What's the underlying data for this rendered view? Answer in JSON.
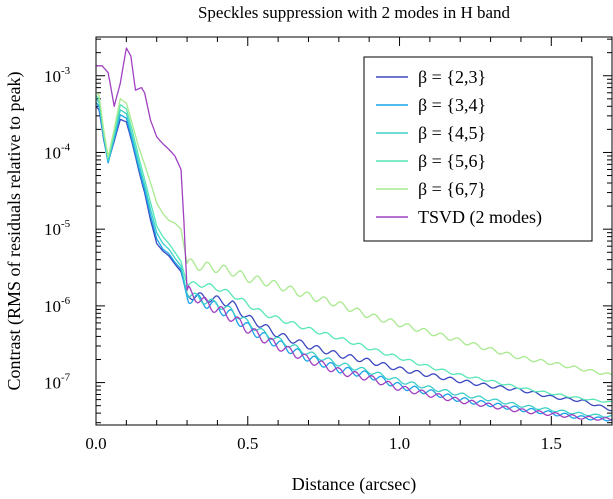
{
  "chart_data": {
    "type": "line",
    "title": "Speckles suppression with 2 modes in H band",
    "xlabel": "Distance (arcsec)",
    "ylabel": "Contrast (RMS of residuals relative to peak)",
    "x_scale": "linear",
    "y_scale": "log",
    "xlim": [
      0,
      1.7
    ],
    "ylim": [
      2.8e-08,
      0.0032
    ],
    "x_ticks": [
      {
        "value": 0.0,
        "label": "0.0"
      },
      {
        "value": 0.5,
        "label": "0.5"
      },
      {
        "value": 1.0,
        "label": "1.0"
      },
      {
        "value": 1.5,
        "label": "1.5"
      }
    ],
    "y_ticks": [
      {
        "value": 0.001,
        "base": "10",
        "exp": "-3"
      },
      {
        "value": 0.0001,
        "base": "10",
        "exp": "-4"
      },
      {
        "value": 1e-05,
        "base": "10",
        "exp": "-5"
      },
      {
        "value": 1e-06,
        "base": "10",
        "exp": "-6"
      },
      {
        "value": 1e-07,
        "base": "10",
        "exp": "-7"
      }
    ],
    "legend_position": "top-right",
    "series": [
      {
        "name": "β = {2,3}",
        "color": "#3b48c0",
        "points": [
          [
            0,
            0.0004
          ],
          [
            0.01,
            0.00036
          ],
          [
            0.025,
            0.00015
          ],
          [
            0.04,
            7.5e-05
          ],
          [
            0.06,
            0.00014
          ],
          [
            0.08,
            0.00027
          ],
          [
            0.1,
            0.00025
          ],
          [
            0.12,
            0.00013
          ],
          [
            0.14,
            6e-05
          ],
          [
            0.16,
            3e-05
          ],
          [
            0.18,
            1.3e-05
          ],
          [
            0.2,
            6.5e-06
          ],
          [
            0.22,
            5.2e-06
          ],
          [
            0.24,
            4.5e-06
          ],
          [
            0.26,
            3.5e-06
          ],
          [
            0.28,
            2.8e-06
          ],
          [
            0.3,
            1.4e-06
          ],
          [
            0.35,
            1.3e-06
          ],
          [
            0.4,
            1.2e-06
          ],
          [
            0.45,
            1.05e-06
          ],
          [
            0.5,
            7e-07
          ],
          [
            0.55,
            5.5e-07
          ],
          [
            0.6,
            4.2e-07
          ],
          [
            0.7,
            3e-07
          ],
          [
            0.8,
            2.3e-07
          ],
          [
            0.9,
            1.9e-07
          ],
          [
            1.0,
            1.5e-07
          ],
          [
            1.1,
            1.25e-07
          ],
          [
            1.2,
            1.05e-07
          ],
          [
            1.3,
            9e-08
          ],
          [
            1.4,
            8e-08
          ],
          [
            1.5,
            6.5e-08
          ],
          [
            1.6,
            5.8e-08
          ],
          [
            1.7,
            4.4e-08
          ]
        ]
      },
      {
        "name": "β = {3,4}",
        "color": "#1aa3e8",
        "points": [
          [
            0,
            0.00045
          ],
          [
            0.01,
            0.0004
          ],
          [
            0.025,
            0.00016
          ],
          [
            0.04,
            7.3e-05
          ],
          [
            0.06,
            0.00015
          ],
          [
            0.08,
            0.00031
          ],
          [
            0.1,
            0.00028
          ],
          [
            0.12,
            0.00014
          ],
          [
            0.14,
            6.5e-05
          ],
          [
            0.16,
            3.3e-05
          ],
          [
            0.18,
            1.5e-05
          ],
          [
            0.2,
            7.5e-06
          ],
          [
            0.22,
            5.5e-06
          ],
          [
            0.24,
            4.8e-06
          ],
          [
            0.26,
            3.7e-06
          ],
          [
            0.28,
            3e-06
          ],
          [
            0.3,
            1.3e-06
          ],
          [
            0.35,
            1.15e-06
          ],
          [
            0.4,
            9.5e-07
          ],
          [
            0.45,
            7.5e-07
          ],
          [
            0.5,
            5.2e-07
          ],
          [
            0.55,
            4e-07
          ],
          [
            0.6,
            3.2e-07
          ],
          [
            0.7,
            2.1e-07
          ],
          [
            0.8,
            1.5e-07
          ],
          [
            0.9,
            1.25e-07
          ],
          [
            1.0,
            9e-08
          ],
          [
            1.1,
            7.5e-08
          ],
          [
            1.2,
            6e-08
          ],
          [
            1.3,
            5.2e-08
          ],
          [
            1.4,
            4.5e-08
          ],
          [
            1.5,
            4e-08
          ],
          [
            1.6,
            3.5e-08
          ],
          [
            1.7,
            3.3e-08
          ]
        ]
      },
      {
        "name": "β = {4,5}",
        "color": "#3ccfc8",
        "points": [
          [
            0,
            0.0005
          ],
          [
            0.01,
            0.00045
          ],
          [
            0.025,
            0.00017
          ],
          [
            0.04,
            7.8e-05
          ],
          [
            0.06,
            0.00016
          ],
          [
            0.08,
            0.00036
          ],
          [
            0.1,
            0.00032
          ],
          [
            0.12,
            0.00016
          ],
          [
            0.14,
            7.5e-05
          ],
          [
            0.16,
            3.8e-05
          ],
          [
            0.18,
            1.8e-05
          ],
          [
            0.2,
            9e-06
          ],
          [
            0.22,
            6.5e-06
          ],
          [
            0.24,
            5.5e-06
          ],
          [
            0.26,
            4.2e-06
          ],
          [
            0.28,
            3.3e-06
          ],
          [
            0.3,
            1.45e-06
          ],
          [
            0.35,
            1.2e-06
          ],
          [
            0.4,
            1.05e-06
          ],
          [
            0.45,
            8.5e-07
          ],
          [
            0.5,
            6e-07
          ],
          [
            0.55,
            4.5e-07
          ],
          [
            0.6,
            3.6e-07
          ],
          [
            0.7,
            2.4e-07
          ],
          [
            0.8,
            1.75e-07
          ],
          [
            0.9,
            1.4e-07
          ],
          [
            1.0,
            1.05e-07
          ],
          [
            1.1,
            8.5e-08
          ],
          [
            1.2,
            7e-08
          ],
          [
            1.3,
            6e-08
          ],
          [
            1.4,
            5e-08
          ],
          [
            1.5,
            4.4e-08
          ],
          [
            1.6,
            3.9e-08
          ],
          [
            1.7,
            3.6e-08
          ]
        ]
      },
      {
        "name": "β = {5,6}",
        "color": "#58e6b8",
        "points": [
          [
            0,
            0.00055
          ],
          [
            0.01,
            0.0005
          ],
          [
            0.025,
            0.00018
          ],
          [
            0.04,
            8.2e-05
          ],
          [
            0.06,
            0.00018
          ],
          [
            0.08,
            0.00042
          ],
          [
            0.1,
            0.00037
          ],
          [
            0.12,
            0.00019
          ],
          [
            0.14,
            9e-05
          ],
          [
            0.16,
            4.5e-05
          ],
          [
            0.18,
            2.2e-05
          ],
          [
            0.2,
            1.1e-05
          ],
          [
            0.22,
            8e-06
          ],
          [
            0.24,
            6.5e-06
          ],
          [
            0.26,
            5e-06
          ],
          [
            0.28,
            3.8e-06
          ],
          [
            0.3,
            1.9e-06
          ],
          [
            0.35,
            1.9e-06
          ],
          [
            0.4,
            1.7e-06
          ],
          [
            0.45,
            1.4e-06
          ],
          [
            0.5,
            1.05e-06
          ],
          [
            0.55,
            8e-07
          ],
          [
            0.6,
            6.8e-07
          ],
          [
            0.7,
            5e-07
          ],
          [
            0.8,
            3.8e-07
          ],
          [
            0.9,
            2.8e-07
          ],
          [
            1.0,
            2.1e-07
          ],
          [
            1.1,
            1.6e-07
          ],
          [
            1.2,
            1.25e-07
          ],
          [
            1.3,
            1.05e-07
          ],
          [
            1.4,
            8.5e-08
          ],
          [
            1.5,
            7.2e-08
          ],
          [
            1.6,
            6.2e-08
          ],
          [
            1.7,
            5.5e-08
          ]
        ]
      },
      {
        "name": "β = {6,7}",
        "color": "#a8ea8e",
        "points": [
          [
            0,
            0.0006
          ],
          [
            0.01,
            0.00056
          ],
          [
            0.025,
            0.0002
          ],
          [
            0.04,
            8.8e-05
          ],
          [
            0.06,
            0.0002
          ],
          [
            0.08,
            0.0005
          ],
          [
            0.1,
            0.00044
          ],
          [
            0.12,
            0.00023
          ],
          [
            0.14,
            0.00012
          ],
          [
            0.16,
            7e-05
          ],
          [
            0.18,
            4e-05
          ],
          [
            0.2,
            2.2e-05
          ],
          [
            0.22,
            1.6e-05
          ],
          [
            0.24,
            1.3e-05
          ],
          [
            0.26,
            1.2e-05
          ],
          [
            0.28,
            1e-05
          ],
          [
            0.3,
            3.6e-06
          ],
          [
            0.35,
            3.3e-06
          ],
          [
            0.4,
            3.1e-06
          ],
          [
            0.45,
            2.8e-06
          ],
          [
            0.5,
            2.3e-06
          ],
          [
            0.55,
            2.1e-06
          ],
          [
            0.6,
            1.85e-06
          ],
          [
            0.7,
            1.35e-06
          ],
          [
            0.8,
            1.05e-06
          ],
          [
            0.9,
            7.5e-07
          ],
          [
            1.0,
            5.8e-07
          ],
          [
            1.1,
            4.5e-07
          ],
          [
            1.2,
            3.5e-07
          ],
          [
            1.3,
            2.7e-07
          ],
          [
            1.4,
            2.1e-07
          ],
          [
            1.5,
            1.8e-07
          ],
          [
            1.6,
            1.5e-07
          ],
          [
            1.7,
            1.25e-07
          ]
        ]
      },
      {
        "name": "TSVD (2 modes)",
        "color": "#a040c0",
        "points": [
          [
            0,
            0.00135
          ],
          [
            0.02,
            0.00135
          ],
          [
            0.04,
            0.0011
          ],
          [
            0.06,
            0.0004
          ],
          [
            0.08,
            0.0008
          ],
          [
            0.1,
            0.0023
          ],
          [
            0.115,
            0.0018
          ],
          [
            0.13,
            0.00065
          ],
          [
            0.15,
            0.0007
          ],
          [
            0.16,
            0.0006
          ],
          [
            0.18,
            0.00026
          ],
          [
            0.2,
            0.00016
          ],
          [
            0.22,
            0.00013
          ],
          [
            0.24,
            0.00011
          ],
          [
            0.26,
            9e-05
          ],
          [
            0.28,
            6e-05
          ],
          [
            0.29,
            1.2e-05
          ],
          [
            0.3,
            1.6e-06
          ],
          [
            0.35,
            1.15e-06
          ],
          [
            0.4,
            9e-07
          ],
          [
            0.45,
            7e-07
          ],
          [
            0.5,
            5e-07
          ],
          [
            0.55,
            3.8e-07
          ],
          [
            0.6,
            3e-07
          ],
          [
            0.7,
            2e-07
          ],
          [
            0.8,
            1.4e-07
          ],
          [
            0.9,
            1.15e-07
          ],
          [
            1.0,
            8.5e-08
          ],
          [
            1.1,
            7e-08
          ],
          [
            1.2,
            5.8e-08
          ],
          [
            1.3,
            5e-08
          ],
          [
            1.4,
            4.3e-08
          ],
          [
            1.5,
            3.9e-08
          ],
          [
            1.6,
            3.5e-08
          ],
          [
            1.7,
            3.3e-08
          ]
        ]
      }
    ]
  }
}
